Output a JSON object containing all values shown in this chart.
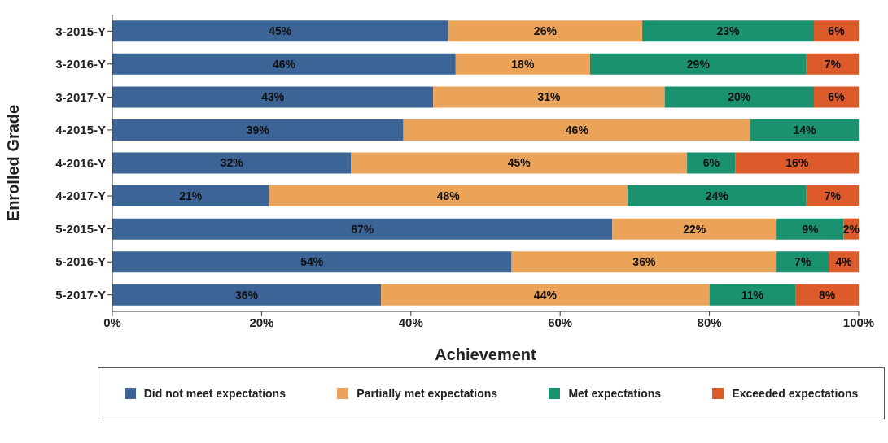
{
  "chart_data": {
    "type": "bar",
    "orientation": "horizontal",
    "stacked": true,
    "xlabel": "Achievement",
    "ylabel": "Enrolled Grade",
    "categories": [
      "3-2015-Y",
      "3-2016-Y",
      "3-2017-Y",
      "4-2015-Y",
      "4-2016-Y",
      "4-2017-Y",
      "5-2015-Y",
      "5-2016-Y",
      "5-2017-Y"
    ],
    "series": [
      {
        "name": "Did not meet expectations",
        "color": "#3c6496",
        "values": [
          45,
          46,
          43,
          39,
          32,
          21,
          67,
          53.5,
          36
        ],
        "value_labels": [
          "45%",
          "46%",
          "43%",
          "39%",
          "32%",
          "21%",
          "67%",
          "54%",
          "36%"
        ]
      },
      {
        "name": "Partially met expectations",
        "color": "#eba35a",
        "values": [
          26,
          18,
          31,
          46.5,
          45,
          48,
          22,
          35.5,
          44
        ],
        "value_labels": [
          "26%",
          "18%",
          "31%",
          "46%",
          "45%",
          "48%",
          "22%",
          "36%",
          "44%"
        ]
      },
      {
        "name": "Met expectations",
        "color": "#1a9270",
        "values": [
          23,
          29,
          20,
          14.5,
          6.5,
          24,
          9,
          7,
          11.5
        ],
        "value_labels": [
          "23%",
          "29%",
          "20%",
          "14%",
          "6%",
          "24%",
          "9%",
          "7%",
          "11%"
        ]
      },
      {
        "name": "Exceeded expectations",
        "color": "#dd5a2b",
        "values": [
          6,
          7,
          6,
          null,
          16.5,
          7,
          2,
          4,
          8.5
        ],
        "value_labels": [
          "6%",
          "7%",
          "6%",
          null,
          "16%",
          "7%",
          "2%",
          "4%",
          "8%"
        ]
      }
    ],
    "xlim": [
      0,
      100
    ],
    "xticks": [
      {
        "value": 0,
        "label": "0%"
      },
      {
        "value": 20,
        "label": "20%"
      },
      {
        "value": 40,
        "label": "40%"
      },
      {
        "value": 60,
        "label": "60%"
      },
      {
        "value": 80,
        "label": "80%"
      },
      {
        "value": 100,
        "label": "100%"
      }
    ],
    "legend": "bottom"
  }
}
